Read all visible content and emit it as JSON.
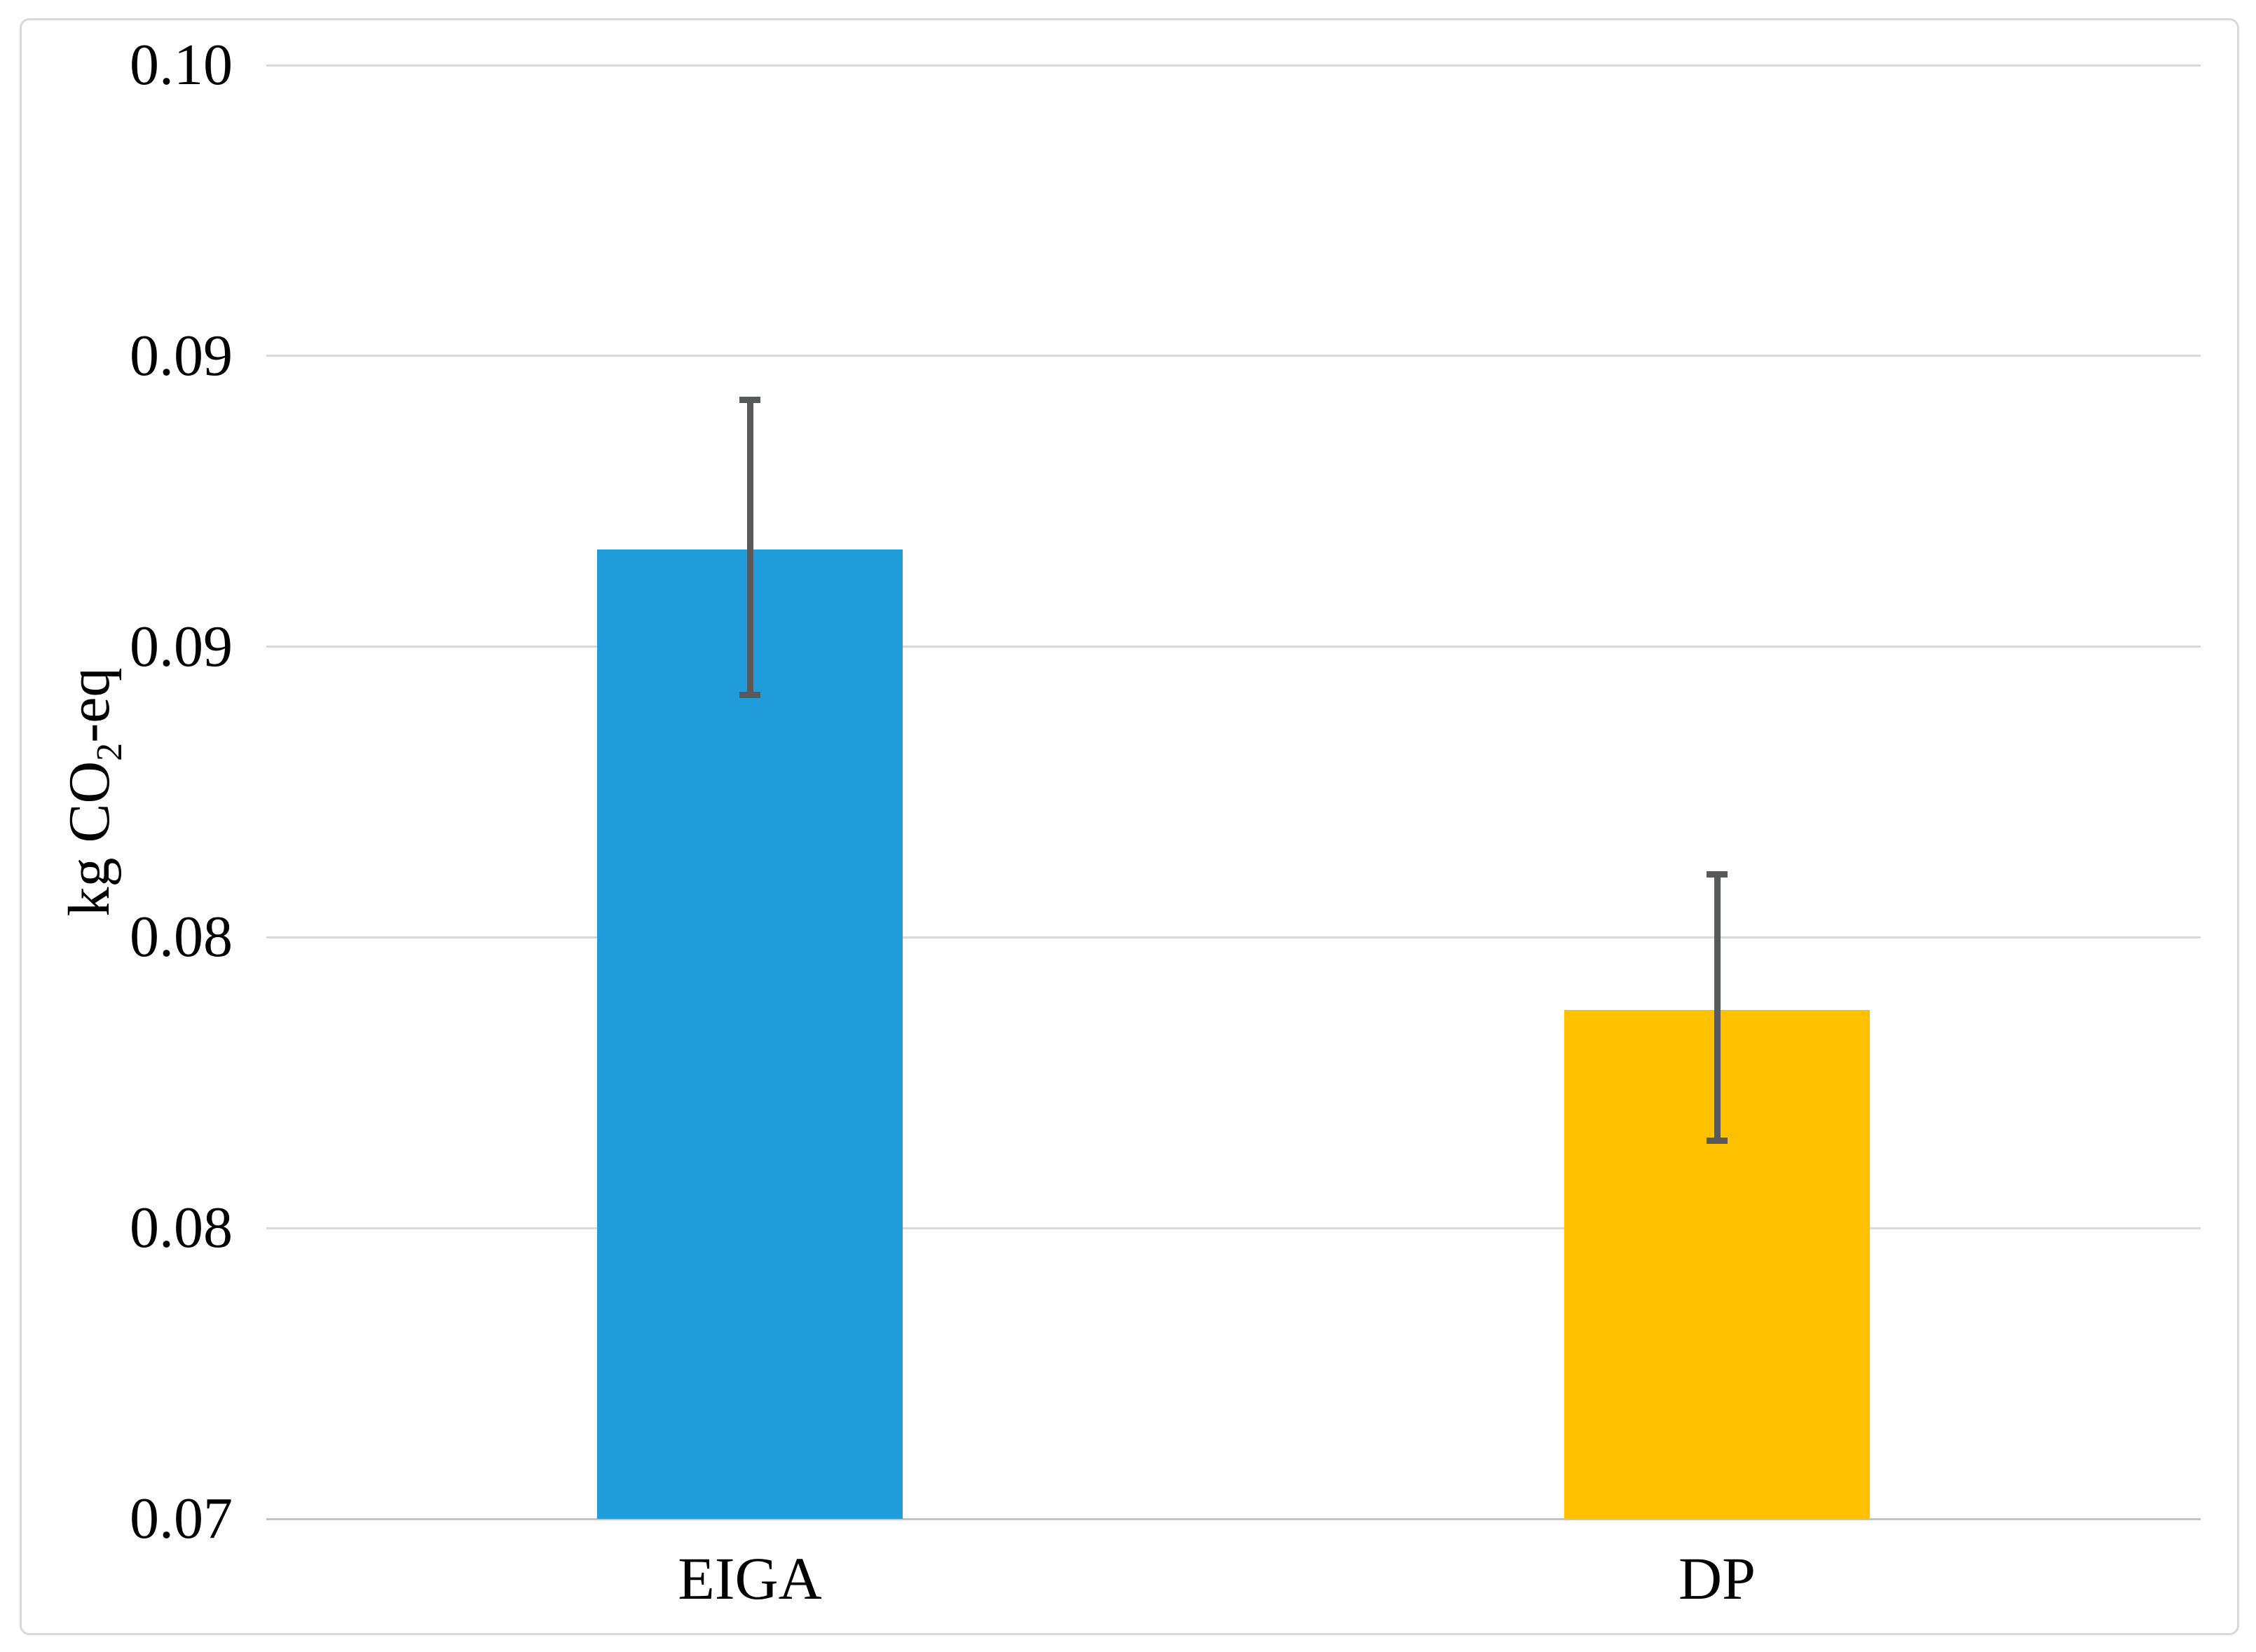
{
  "figure": {
    "background_color": "#FFFFFF",
    "border_color": "#D9D9D9"
  },
  "chart_data": {
    "type": "bar",
    "categories": [
      "EIGA",
      "DP"
    ],
    "values": [
      0.09,
      0.0805
    ],
    "error_bars": {
      "high": [
        0.0931,
        0.0833
      ],
      "low": [
        0.087,
        0.0778
      ]
    },
    "bar_colors": [
      "#1F9CD9",
      "#FFC000"
    ],
    "error_bar_color": "#58595B",
    "ylabel": "kg CO2-eq",
    "ylabel_parts": {
      "pre": "kg CO",
      "sub": "2",
      "post": "-eq"
    },
    "xlabel": "",
    "ylim": [
      0.07,
      0.1
    ],
    "ytick_values": [
      0.1,
      0.094,
      0.088,
      0.082,
      0.076,
      0.07
    ],
    "ytick_labels": [
      "0.10",
      "0.09",
      "0.09",
      "0.08",
      "0.08",
      "0.07"
    ],
    "grid": true,
    "legend": false,
    "gridline_color": "#D9D9D9",
    "axis_line_color": "#C4C4C4",
    "text_color": "#000000"
  }
}
